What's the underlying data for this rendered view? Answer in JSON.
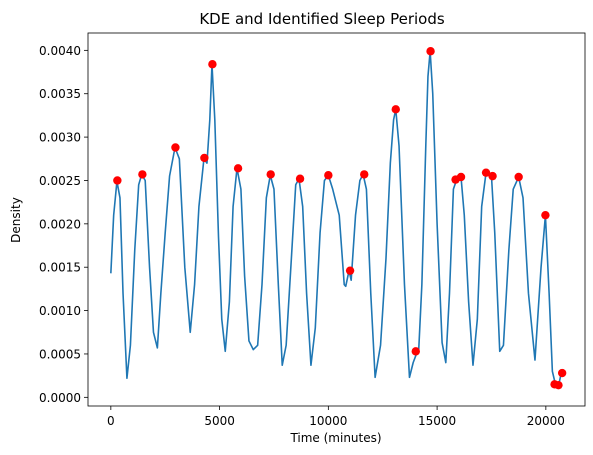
{
  "chart_data": {
    "type": "line",
    "title": "KDE and Identified Sleep Periods",
    "xlabel": "Time (minutes)",
    "ylabel": "Density",
    "xlim": [
      -1050,
      21800
    ],
    "ylim": [
      -0.0001,
      0.0042
    ],
    "xticks": [
      0,
      5000,
      10000,
      15000,
      20000
    ],
    "xtick_labels": [
      "0",
      "5000",
      "10000",
      "15000",
      "20000"
    ],
    "yticks": [
      0.0,
      0.0005,
      0.001,
      0.0015,
      0.002,
      0.0025,
      0.003,
      0.0035,
      0.004
    ],
    "ytick_labels": [
      "0.0000",
      "0.0005",
      "0.0010",
      "0.0015",
      "0.0020",
      "0.0025",
      "0.0030",
      "0.0035",
      "0.0040"
    ],
    "grid": false,
    "legend": "none",
    "series": [
      {
        "kind": "line",
        "color": "#1f77b4",
        "points": [
          [
            0,
            0.00143
          ],
          [
            130,
            0.0021
          ],
          [
            280,
            0.00249
          ],
          [
            420,
            0.0023
          ],
          [
            560,
            0.0012
          ],
          [
            740,
            0.00022
          ],
          [
            900,
            0.0006
          ],
          [
            1100,
            0.0017
          ],
          [
            1280,
            0.00245
          ],
          [
            1420,
            0.00257
          ],
          [
            1580,
            0.0025
          ],
          [
            1780,
            0.0015
          ],
          [
            1960,
            0.00075
          ],
          [
            2140,
            0.00057
          ],
          [
            2300,
            0.0012
          ],
          [
            2500,
            0.0019
          ],
          [
            2700,
            0.00255
          ],
          [
            2950,
            0.00288
          ],
          [
            3150,
            0.00275
          ],
          [
            3400,
            0.0015
          ],
          [
            3650,
            0.00075
          ],
          [
            3850,
            0.0013
          ],
          [
            4050,
            0.0022
          ],
          [
            4280,
            0.00275
          ],
          [
            4420,
            0.0027
          ],
          [
            4550,
            0.0032
          ],
          [
            4650,
            0.00384
          ],
          [
            4780,
            0.0032
          ],
          [
            4950,
            0.00185
          ],
          [
            5100,
            0.0009
          ],
          [
            5260,
            0.00053
          ],
          [
            5450,
            0.0011
          ],
          [
            5620,
            0.0022
          ],
          [
            5800,
            0.00264
          ],
          [
            5980,
            0.0024
          ],
          [
            6150,
            0.0014
          ],
          [
            6350,
            0.00065
          ],
          [
            6550,
            0.00055
          ],
          [
            6750,
            0.0006
          ],
          [
            6950,
            0.0013
          ],
          [
            7150,
            0.0023
          ],
          [
            7330,
            0.00256
          ],
          [
            7500,
            0.0024
          ],
          [
            7700,
            0.0013
          ],
          [
            7880,
            0.00037
          ],
          [
            8060,
            0.0006
          ],
          [
            8300,
            0.0016
          ],
          [
            8500,
            0.00245
          ],
          [
            8650,
            0.00252
          ],
          [
            8820,
            0.0022
          ],
          [
            9000,
            0.0012
          ],
          [
            9200,
            0.00037
          ],
          [
            9400,
            0.0008
          ],
          [
            9620,
            0.0019
          ],
          [
            9820,
            0.0025
          ],
          [
            10000,
            0.00256
          ],
          [
            10200,
            0.0024
          ],
          [
            10500,
            0.0021
          ],
          [
            10730,
            0.0013
          ],
          [
            10800,
            0.00128
          ],
          [
            10950,
            0.00146
          ],
          [
            11050,
            0.00135
          ],
          [
            11250,
            0.0021
          ],
          [
            11450,
            0.0025
          ],
          [
            11600,
            0.00257
          ],
          [
            11750,
            0.0024
          ],
          [
            11950,
            0.0012
          ],
          [
            12150,
            0.00023
          ],
          [
            12400,
            0.0006
          ],
          [
            12650,
            0.0016
          ],
          [
            12850,
            0.0027
          ],
          [
            13000,
            0.0032
          ],
          [
            13100,
            0.00332
          ],
          [
            13250,
            0.0029
          ],
          [
            13500,
            0.0013
          ],
          [
            13730,
            0.00023
          ],
          [
            13900,
            0.0004
          ],
          [
            14050,
            0.0005
          ],
          [
            14150,
            0.00052
          ],
          [
            14300,
            0.0013
          ],
          [
            14480,
            0.0029
          ],
          [
            14580,
            0.0037
          ],
          [
            14680,
            0.00399
          ],
          [
            14800,
            0.0035
          ],
          [
            15000,
            0.002
          ],
          [
            15230,
            0.00063
          ],
          [
            15400,
            0.0004
          ],
          [
            15570,
            0.0012
          ],
          [
            15750,
            0.0024
          ],
          [
            15900,
            0.00251
          ],
          [
            16100,
            0.00254
          ],
          [
            16250,
            0.0021
          ],
          [
            16450,
            0.0011
          ],
          [
            16650,
            0.00037
          ],
          [
            16850,
            0.0009
          ],
          [
            17050,
            0.0022
          ],
          [
            17250,
            0.00259
          ],
          [
            17500,
            0.00255
          ],
          [
            17650,
            0.0019
          ],
          [
            17880,
            0.00053
          ],
          [
            18050,
            0.0006
          ],
          [
            18300,
            0.0017
          ],
          [
            18500,
            0.0024
          ],
          [
            18750,
            0.00254
          ],
          [
            18950,
            0.0023
          ],
          [
            19200,
            0.0012
          ],
          [
            19500,
            0.00043
          ],
          [
            19780,
            0.0015
          ],
          [
            19980,
            0.0021
          ],
          [
            20150,
            0.0012
          ],
          [
            20300,
            0.0003
          ],
          [
            20440,
            0.00015
          ],
          [
            20580,
            0.00013
          ],
          [
            20700,
            0.00027
          ]
        ]
      },
      {
        "kind": "scatter",
        "color": "#ff0000",
        "points": [
          [
            300,
            0.0025
          ],
          [
            1450,
            0.00257
          ],
          [
            2970,
            0.00288
          ],
          [
            4300,
            0.00276
          ],
          [
            4670,
            0.00384
          ],
          [
            5850,
            0.00264
          ],
          [
            7350,
            0.00257
          ],
          [
            8700,
            0.00252
          ],
          [
            10000,
            0.00256
          ],
          [
            11000,
            0.00146
          ],
          [
            11650,
            0.00257
          ],
          [
            13100,
            0.00332
          ],
          [
            14020,
            0.00053
          ],
          [
            14700,
            0.00399
          ],
          [
            15850,
            0.00251
          ],
          [
            16100,
            0.00254
          ],
          [
            17250,
            0.00259
          ],
          [
            17550,
            0.00255
          ],
          [
            18750,
            0.00254
          ],
          [
            19980,
            0.0021
          ],
          [
            20400,
            0.00015
          ],
          [
            20580,
            0.00014
          ],
          [
            20750,
            0.00028
          ]
        ]
      }
    ]
  }
}
